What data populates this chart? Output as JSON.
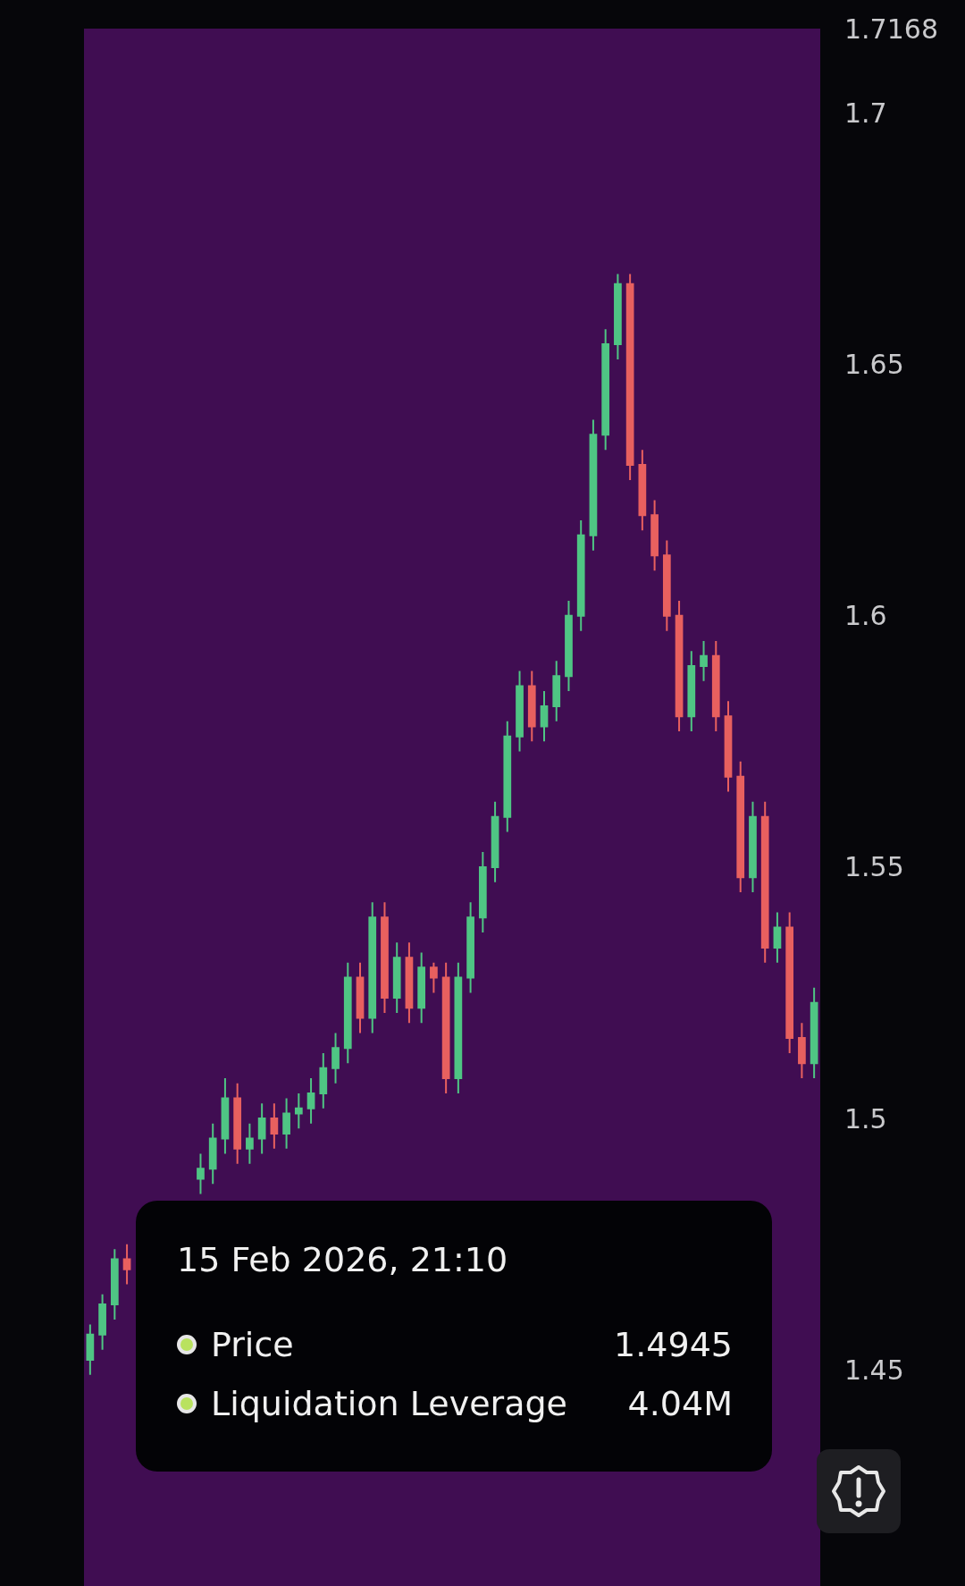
{
  "chart_data": {
    "type": "candlestick",
    "categories": [
      null,
      null,
      null,
      null,
      null,
      null,
      null,
      null,
      null,
      null,
      null,
      null,
      null,
      null,
      null,
      null,
      null,
      null,
      null,
      null,
      null,
      null,
      null,
      null,
      null,
      null,
      null,
      null,
      null,
      null,
      null,
      null,
      null,
      null,
      null,
      null,
      null,
      null,
      null,
      null,
      null,
      null,
      null,
      null,
      null,
      null,
      null,
      null,
      null,
      null,
      null,
      null,
      null,
      null,
      null,
      null,
      null,
      null,
      null,
      null
    ],
    "ohlc": [
      [
        1.452,
        1.459,
        1.449,
        1.457
      ],
      [
        1.457,
        1.465,
        1.454,
        1.463
      ],
      [
        1.463,
        1.474,
        1.46,
        1.472
      ],
      [
        1.472,
        1.475,
        1.467,
        1.47
      ],
      null,
      null,
      null,
      null,
      null,
      [
        1.488,
        1.493,
        1.485,
        1.49
      ],
      [
        1.49,
        1.499,
        1.487,
        1.496
      ],
      [
        1.496,
        1.508,
        1.493,
        1.504
      ],
      [
        1.504,
        1.507,
        1.491,
        1.494
      ],
      [
        1.494,
        1.499,
        1.491,
        1.496
      ],
      [
        1.496,
        1.503,
        1.493,
        1.5
      ],
      [
        1.5,
        1.503,
        1.494,
        1.497
      ],
      [
        1.497,
        1.504,
        1.494,
        1.501
      ],
      [
        1.501,
        1.505,
        1.498,
        1.502
      ],
      [
        1.502,
        1.508,
        1.499,
        1.505
      ],
      [
        1.505,
        1.513,
        1.502,
        1.51
      ],
      [
        1.51,
        1.517,
        1.507,
        1.514
      ],
      [
        1.514,
        1.531,
        1.511,
        1.528
      ],
      [
        1.528,
        1.531,
        1.517,
        1.52
      ],
      [
        1.52,
        1.543,
        1.517,
        1.54
      ],
      [
        1.54,
        1.543,
        1.521,
        1.524
      ],
      [
        1.524,
        1.535,
        1.521,
        1.532
      ],
      [
        1.532,
        1.535,
        1.519,
        1.522
      ],
      [
        1.522,
        1.533,
        1.519,
        1.53
      ],
      [
        1.53,
        1.531,
        1.525,
        1.528
      ],
      [
        1.528,
        1.531,
        1.505,
        1.508
      ],
      [
        1.508,
        1.531,
        1.505,
        1.528
      ],
      [
        1.528,
        1.543,
        1.525,
        1.54
      ],
      [
        1.54,
        1.553,
        1.537,
        1.55
      ],
      [
        1.55,
        1.563,
        1.547,
        1.56
      ],
      [
        1.56,
        1.579,
        1.557,
        1.576
      ],
      [
        1.576,
        1.589,
        1.573,
        1.586
      ],
      [
        1.586,
        1.589,
        1.575,
        1.578
      ],
      [
        1.578,
        1.585,
        1.575,
        1.582
      ],
      [
        1.582,
        1.591,
        1.579,
        1.588
      ],
      [
        1.588,
        1.603,
        1.585,
        1.6
      ],
      [
        1.6,
        1.619,
        1.597,
        1.616
      ],
      [
        1.616,
        1.639,
        1.613,
        1.636
      ],
      [
        1.636,
        1.657,
        1.633,
        1.654
      ],
      [
        1.654,
        1.668,
        1.651,
        1.666
      ],
      [
        1.666,
        1.668,
        1.627,
        1.63
      ],
      [
        1.63,
        1.633,
        1.617,
        1.62
      ],
      [
        1.62,
        1.623,
        1.609,
        1.612
      ],
      [
        1.612,
        1.615,
        1.597,
        1.6
      ],
      [
        1.6,
        1.603,
        1.577,
        1.58
      ],
      [
        1.58,
        1.593,
        1.577,
        1.59
      ],
      [
        1.59,
        1.595,
        1.587,
        1.592
      ],
      [
        1.592,
        1.595,
        1.577,
        1.58
      ],
      [
        1.58,
        1.583,
        1.565,
        1.568
      ],
      [
        1.568,
        1.571,
        1.545,
        1.548
      ],
      [
        1.548,
        1.563,
        1.545,
        1.56
      ],
      [
        1.56,
        1.563,
        1.531,
        1.534
      ],
      [
        1.534,
        1.541,
        1.531,
        1.538
      ],
      [
        1.538,
        1.541,
        1.513,
        1.516
      ],
      [
        1.516,
        1.519,
        1.508,
        1.511
      ],
      [
        1.511,
        1.526,
        1.508,
        1.523
      ]
    ],
    "colors": [
      "#4fc584",
      "#4fc584",
      "#4fc584",
      "#e8605f",
      null,
      null,
      null,
      null,
      null,
      "#4fc584",
      "#4fc584",
      "#4fc584",
      "#e8605f",
      "#4fc584",
      "#4fc584",
      "#e8605f",
      "#4fc584",
      "#4fc584",
      "#4fc584",
      "#4fc584",
      "#4fc584",
      "#4fc584",
      "#e8605f",
      "#4fc584",
      "#e8605f",
      "#4fc584",
      "#e8605f",
      "#4fc584",
      "#e8605f",
      "#e8605f",
      "#4fc584",
      "#4fc584",
      "#4fc584",
      "#4fc584",
      "#4fc584",
      "#4fc584",
      "#e8605f",
      "#4fc584",
      "#4fc584",
      "#4fc584",
      "#4fc584",
      "#4fc584",
      "#4fc584",
      "#4fc584",
      "#e8605f",
      "#e8605f",
      "#e8605f",
      "#e8605f",
      "#e8605f",
      "#4fc584",
      "#4fc584",
      "#e8605f",
      "#e8605f",
      "#e8605f",
      "#4fc584",
      "#e8605f",
      "#4fc584",
      "#e8605f",
      "#e8605f",
      "#4fc584"
    ],
    "ylim": [
      1.407,
      1.7168
    ],
    "yticks": [
      1.45,
      1.5,
      1.55,
      1.6,
      1.65,
      1.7,
      1.7168
    ],
    "annotations": [
      "15 Feb 2026, 21:10",
      "Price",
      "1.4945",
      "Liquidation Leverage",
      "4.04M"
    ]
  }
}
